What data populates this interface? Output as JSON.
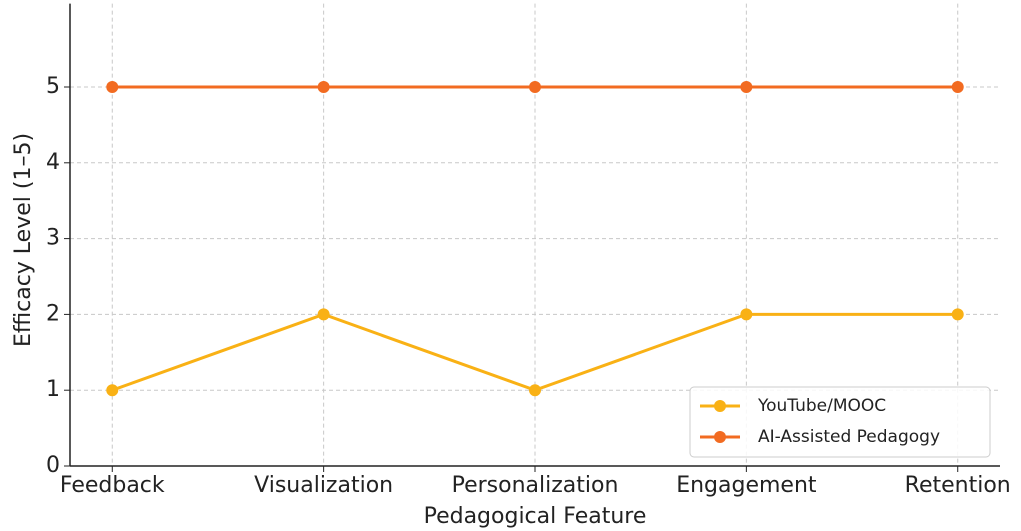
{
  "chart_data": {
    "type": "line",
    "xlabel": "Pedagogical Feature",
    "ylabel": "Efficacy Level (1–5)",
    "categories": [
      "Feedback",
      "Visualization",
      "Personalization",
      "Engagement",
      "Retention"
    ],
    "series": [
      {
        "name": "YouTube/MOOC",
        "color": "#f9b115",
        "values": [
          1,
          2,
          1,
          2,
          2
        ]
      },
      {
        "name": "AI-Assisted Pedagogy",
        "color": "#f26b21",
        "values": [
          5,
          5,
          5,
          5,
          5
        ]
      }
    ],
    "ylim": [
      0,
      6.1
    ],
    "yticks": [
      0,
      1,
      2,
      3,
      4,
      5
    ],
    "grid": true,
    "legend": "lower right"
  }
}
